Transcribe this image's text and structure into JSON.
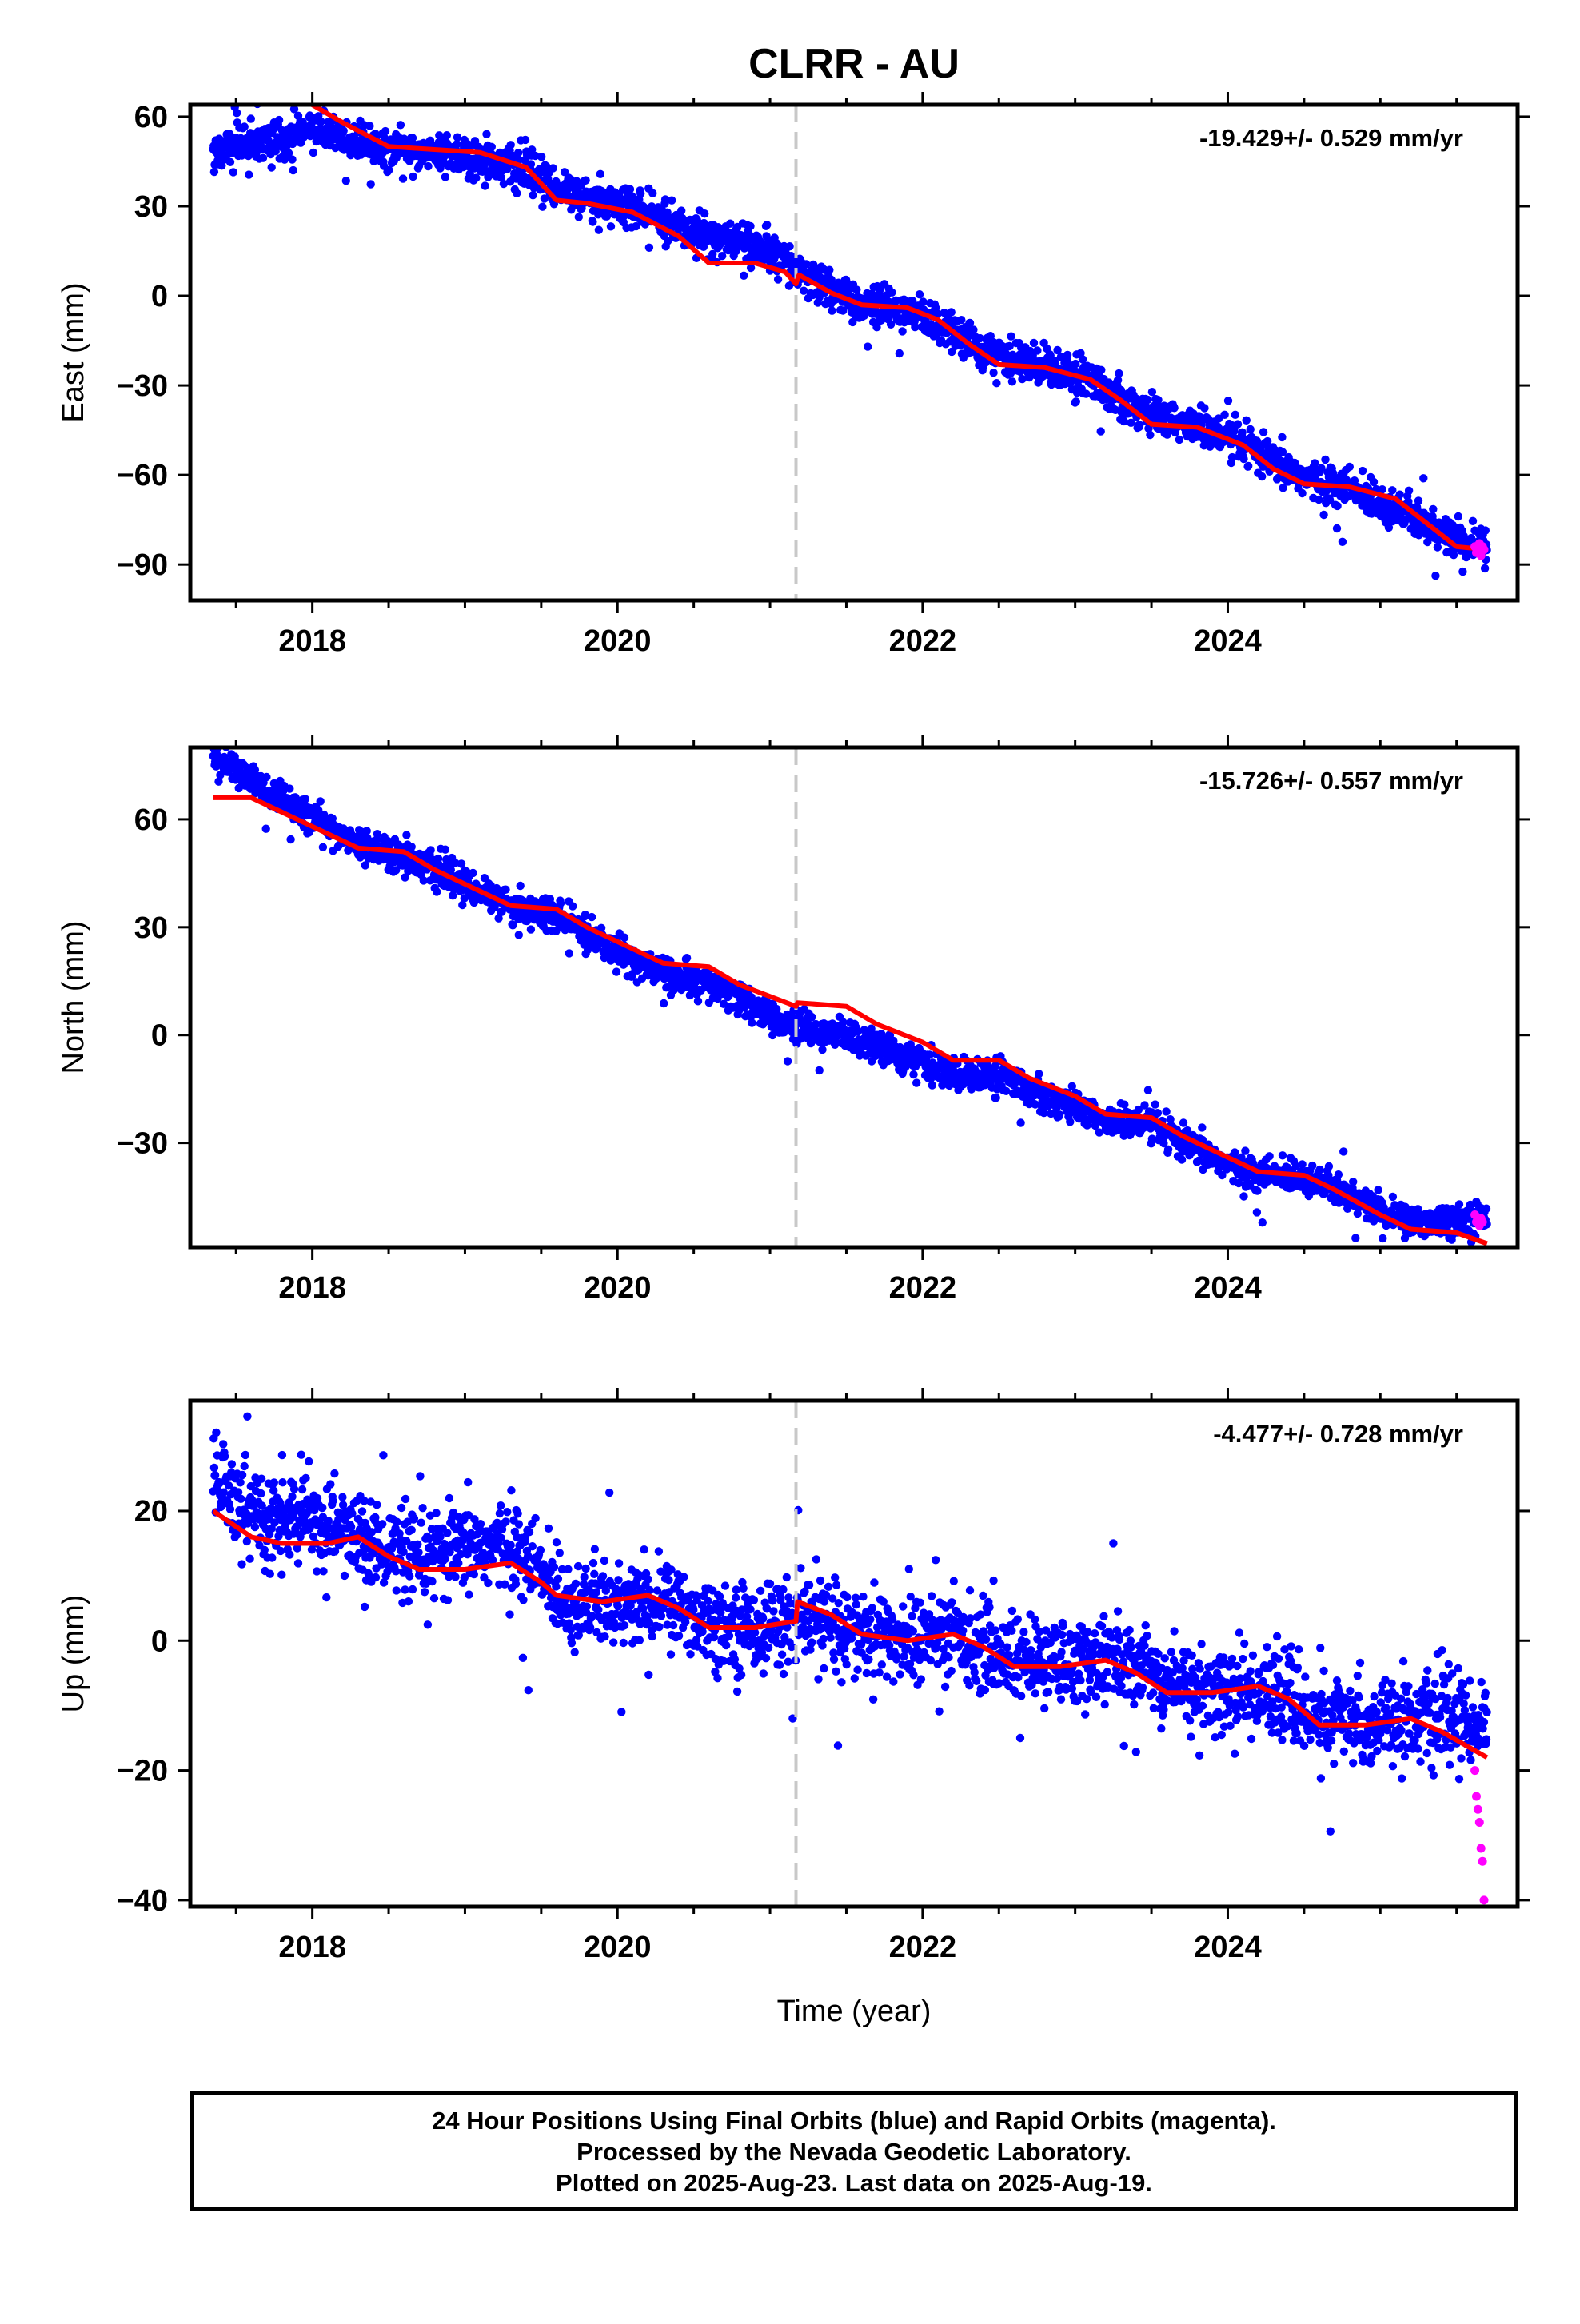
{
  "title": "CLRR - AU",
  "colors": {
    "final_orbit_points": "#0000ff",
    "rapid_orbit_points": "#ff00ff",
    "model_line": "#ff0000",
    "event_line": "#c8c8c8",
    "frame": "#000000"
  },
  "chart_data": [
    {
      "type": "scatter",
      "component": "East",
      "ylabel": "East (mm)",
      "xlabel": "",
      "xlim": [
        2017.2,
        2025.9
      ],
      "ylim": [
        -102,
        64
      ],
      "xticks": [
        2018,
        2020,
        2022,
        2024
      ],
      "yticks": [
        60,
        30,
        0,
        -30,
        -60,
        -90
      ],
      "rate_annotation": "-19.429+/- 0.529 mm/yr",
      "event_line_x": 2021.17,
      "model": [
        [
          2018.0,
          64
        ],
        [
          2018.2,
          58
        ],
        [
          2018.5,
          50
        ],
        [
          2018.8,
          49
        ],
        [
          2019.1,
          48
        ],
        [
          2019.4,
          43
        ],
        [
          2019.6,
          32
        ],
        [
          2019.8,
          31
        ],
        [
          2020.1,
          28
        ],
        [
          2020.4,
          20
        ],
        [
          2020.6,
          11
        ],
        [
          2020.9,
          11
        ],
        [
          2021.1,
          8
        ],
        [
          2021.17,
          4
        ],
        [
          2021.19,
          7
        ],
        [
          2021.4,
          1
        ],
        [
          2021.6,
          -3
        ],
        [
          2021.9,
          -4
        ],
        [
          2022.1,
          -8
        ],
        [
          2022.3,
          -16
        ],
        [
          2022.5,
          -23
        ],
        [
          2022.8,
          -24
        ],
        [
          2023.1,
          -28
        ],
        [
          2023.3,
          -35
        ],
        [
          2023.5,
          -43
        ],
        [
          2023.8,
          -44
        ],
        [
          2024.1,
          -50
        ],
        [
          2024.3,
          -58
        ],
        [
          2024.5,
          -63
        ],
        [
          2024.8,
          -64
        ],
        [
          2025.1,
          -68
        ],
        [
          2025.3,
          -76
        ],
        [
          2025.5,
          -84
        ],
        [
          2025.7,
          -85
        ]
      ],
      "series": [
        {
          "name": "Final Orbits",
          "trend": [
            [
              2017.35,
              49
            ],
            [
              2017.6,
              51
            ],
            [
              2017.9,
              54
            ],
            [
              2018.0,
              56
            ],
            [
              2018.2,
              53
            ],
            [
              2018.5,
              49
            ],
            [
              2018.8,
              48
            ],
            [
              2019.1,
              46
            ],
            [
              2019.4,
              42
            ],
            [
              2019.6,
              36
            ],
            [
              2019.8,
              33
            ],
            [
              2020.1,
              29
            ],
            [
              2020.4,
              23
            ],
            [
              2020.6,
              20
            ],
            [
              2020.9,
              17
            ],
            [
              2021.1,
              12
            ],
            [
              2021.17,
              8
            ],
            [
              2021.4,
              2
            ],
            [
              2021.6,
              -3
            ],
            [
              2021.9,
              -5
            ],
            [
              2022.1,
              -9
            ],
            [
              2022.3,
              -15
            ],
            [
              2022.5,
              -21
            ],
            [
              2022.8,
              -23
            ],
            [
              2023.1,
              -28
            ],
            [
              2023.3,
              -34
            ],
            [
              2023.5,
              -40
            ],
            [
              2023.8,
              -44
            ],
            [
              2024.1,
              -50
            ],
            [
              2024.3,
              -56
            ],
            [
              2024.5,
              -61
            ],
            [
              2024.8,
              -65
            ],
            [
              2025.1,
              -71
            ],
            [
              2025.3,
              -77
            ],
            [
              2025.5,
              -82
            ],
            [
              2025.7,
              -84
            ]
          ],
          "scatter_sd": 3.2,
          "outlier_sd": 8.0
        },
        {
          "name": "Rapid Orbits",
          "points": [
            [
              2025.62,
              -84
            ],
            [
              2025.63,
              -86
            ],
            [
              2025.64,
              -85
            ],
            [
              2025.65,
              -83
            ],
            [
              2025.66,
              -87
            ],
            [
              2025.67,
              -84
            ],
            [
              2025.68,
              -85
            ]
          ]
        }
      ]
    },
    {
      "type": "scatter",
      "component": "North",
      "ylabel": "North (mm)",
      "xlabel": "",
      "xlim": [
        2017.2,
        2025.9
      ],
      "ylim": [
        -59,
        80
      ],
      "xticks": [
        2018,
        2020,
        2022,
        2024
      ],
      "yticks": [
        60,
        30,
        0,
        -30
      ],
      "rate_annotation": "-15.726+/- 0.557 mm/yr",
      "event_line_x": 2021.17,
      "model": [
        [
          2017.35,
          66
        ],
        [
          2017.6,
          66
        ],
        [
          2017.8,
          62
        ],
        [
          2018.1,
          56
        ],
        [
          2018.3,
          52
        ],
        [
          2018.6,
          51
        ],
        [
          2018.8,
          46
        ],
        [
          2019.1,
          40
        ],
        [
          2019.3,
          36
        ],
        [
          2019.6,
          35
        ],
        [
          2019.8,
          30
        ],
        [
          2020.1,
          24
        ],
        [
          2020.3,
          20
        ],
        [
          2020.6,
          19
        ],
        [
          2020.8,
          14
        ],
        [
          2021.17,
          8
        ],
        [
          2021.18,
          9
        ],
        [
          2021.5,
          8
        ],
        [
          2021.7,
          3
        ],
        [
          2022.0,
          -2
        ],
        [
          2022.2,
          -7
        ],
        [
          2022.5,
          -7
        ],
        [
          2022.7,
          -12
        ],
        [
          2023.0,
          -17
        ],
        [
          2023.2,
          -22
        ],
        [
          2023.5,
          -23
        ],
        [
          2023.7,
          -28
        ],
        [
          2024.0,
          -34
        ],
        [
          2024.2,
          -38
        ],
        [
          2024.5,
          -39
        ],
        [
          2024.7,
          -43
        ],
        [
          2025.0,
          -50
        ],
        [
          2025.2,
          -54
        ],
        [
          2025.5,
          -55
        ],
        [
          2025.7,
          -58
        ]
      ],
      "series": [
        {
          "name": "Final Orbits",
          "trend": [
            [
              2017.35,
              77
            ],
            [
              2017.5,
              74
            ],
            [
              2017.7,
              68
            ],
            [
              2017.9,
              63
            ],
            [
              2018.1,
              58
            ],
            [
              2018.3,
              53
            ],
            [
              2018.6,
              50
            ],
            [
              2018.8,
              46
            ],
            [
              2019.1,
              40
            ],
            [
              2019.3,
              36
            ],
            [
              2019.6,
              33
            ],
            [
              2019.8,
              28
            ],
            [
              2020.1,
              21
            ],
            [
              2020.3,
              17
            ],
            [
              2020.6,
              14
            ],
            [
              2020.8,
              10
            ],
            [
              2021.1,
              3
            ],
            [
              2021.3,
              1
            ],
            [
              2021.5,
              0
            ],
            [
              2021.7,
              -3
            ],
            [
              2022.0,
              -8
            ],
            [
              2022.2,
              -11
            ],
            [
              2022.5,
              -11
            ],
            [
              2022.7,
              -15
            ],
            [
              2023.0,
              -20
            ],
            [
              2023.2,
              -24
            ],
            [
              2023.5,
              -25
            ],
            [
              2023.7,
              -30
            ],
            [
              2024.0,
              -36
            ],
            [
              2024.2,
              -39
            ],
            [
              2024.5,
              -39
            ],
            [
              2024.7,
              -43
            ],
            [
              2025.0,
              -49
            ],
            [
              2025.2,
              -52
            ],
            [
              2025.5,
              -51
            ],
            [
              2025.7,
              -51
            ]
          ],
          "scatter_sd": 2.2,
          "outlier_sd": 6.0
        },
        {
          "name": "Rapid Orbits",
          "points": [
            [
              2025.62,
              -50
            ],
            [
              2025.63,
              -52
            ],
            [
              2025.64,
              -51
            ],
            [
              2025.65,
              -53
            ],
            [
              2025.66,
              -51
            ],
            [
              2025.67,
              -52
            ]
          ]
        }
      ]
    },
    {
      "type": "scatter",
      "component": "Up",
      "ylabel": "Up (mm)",
      "xlabel": "Time (year)",
      "xlim": [
        2017.2,
        2025.9
      ],
      "ylim": [
        -41,
        37
      ],
      "xticks": [
        2018,
        2020,
        2022,
        2024
      ],
      "yticks": [
        20,
        0,
        -20,
        -40
      ],
      "rate_annotation": "-4.477+/- 0.728 mm/yr",
      "event_line_x": 2021.17,
      "model": [
        [
          2017.35,
          20
        ],
        [
          2017.6,
          16
        ],
        [
          2017.8,
          15
        ],
        [
          2018.1,
          15
        ],
        [
          2018.3,
          16
        ],
        [
          2018.5,
          13
        ],
        [
          2018.7,
          11
        ],
        [
          2019.0,
          11
        ],
        [
          2019.3,
          12
        ],
        [
          2019.5,
          9
        ],
        [
          2019.6,
          7
        ],
        [
          2019.9,
          6
        ],
        [
          2020.2,
          7
        ],
        [
          2020.4,
          5
        ],
        [
          2020.6,
          2
        ],
        [
          2020.9,
          2
        ],
        [
          2021.17,
          3
        ],
        [
          2021.18,
          6
        ],
        [
          2021.4,
          4
        ],
        [
          2021.6,
          1
        ],
        [
          2021.9,
          0
        ],
        [
          2022.2,
          1
        ],
        [
          2022.4,
          -1
        ],
        [
          2022.6,
          -4
        ],
        [
          2022.9,
          -4
        ],
        [
          2023.2,
          -3
        ],
        [
          2023.4,
          -5
        ],
        [
          2023.6,
          -8
        ],
        [
          2023.9,
          -8
        ],
        [
          2024.2,
          -7
        ],
        [
          2024.4,
          -9
        ],
        [
          2024.6,
          -13
        ],
        [
          2024.9,
          -13
        ],
        [
          2025.2,
          -12
        ],
        [
          2025.4,
          -14
        ],
        [
          2025.7,
          -18
        ]
      ],
      "series": [
        {
          "name": "Final Orbits",
          "trend": [
            [
              2017.35,
              24
            ],
            [
              2017.6,
              19
            ],
            [
              2017.9,
              19
            ],
            [
              2018.1,
              18
            ],
            [
              2018.4,
              15
            ],
            [
              2018.7,
              12
            ],
            [
              2019.0,
              14
            ],
            [
              2019.3,
              15
            ],
            [
              2019.5,
              10
            ],
            [
              2019.7,
              6
            ],
            [
              2020.0,
              5
            ],
            [
              2020.3,
              6
            ],
            [
              2020.5,
              4
            ],
            [
              2020.8,
              2
            ],
            [
              2021.1,
              3
            ],
            [
              2021.3,
              3
            ],
            [
              2021.6,
              1
            ],
            [
              2021.9,
              0
            ],
            [
              2022.2,
              1
            ],
            [
              2022.5,
              -2
            ],
            [
              2022.8,
              -4
            ],
            [
              2023.1,
              -3
            ],
            [
              2023.4,
              -4
            ],
            [
              2023.7,
              -7
            ],
            [
              2024.0,
              -8
            ],
            [
              2024.3,
              -8
            ],
            [
              2024.6,
              -12
            ],
            [
              2024.9,
              -13
            ],
            [
              2025.2,
              -12
            ],
            [
              2025.5,
              -12
            ],
            [
              2025.7,
              -13
            ]
          ],
          "scatter_sd": 3.3,
          "outlier_sd": 9.0
        },
        {
          "name": "Rapid Orbits",
          "points": [
            [
              2025.62,
              -20
            ],
            [
              2025.63,
              -24
            ],
            [
              2025.64,
              -26
            ],
            [
              2025.65,
              -28
            ],
            [
              2025.66,
              -32
            ],
            [
              2025.67,
              -34
            ],
            [
              2025.68,
              -40
            ]
          ]
        }
      ]
    }
  ],
  "footer": {
    "line1": "24 Hour Positions Using Final Orbits (blue) and Rapid Orbits (magenta).",
    "line2": "Processed by the Nevada Geodetic Laboratory.",
    "line3": "Plotted on 2025-Aug-23. Last data on 2025-Aug-19."
  }
}
